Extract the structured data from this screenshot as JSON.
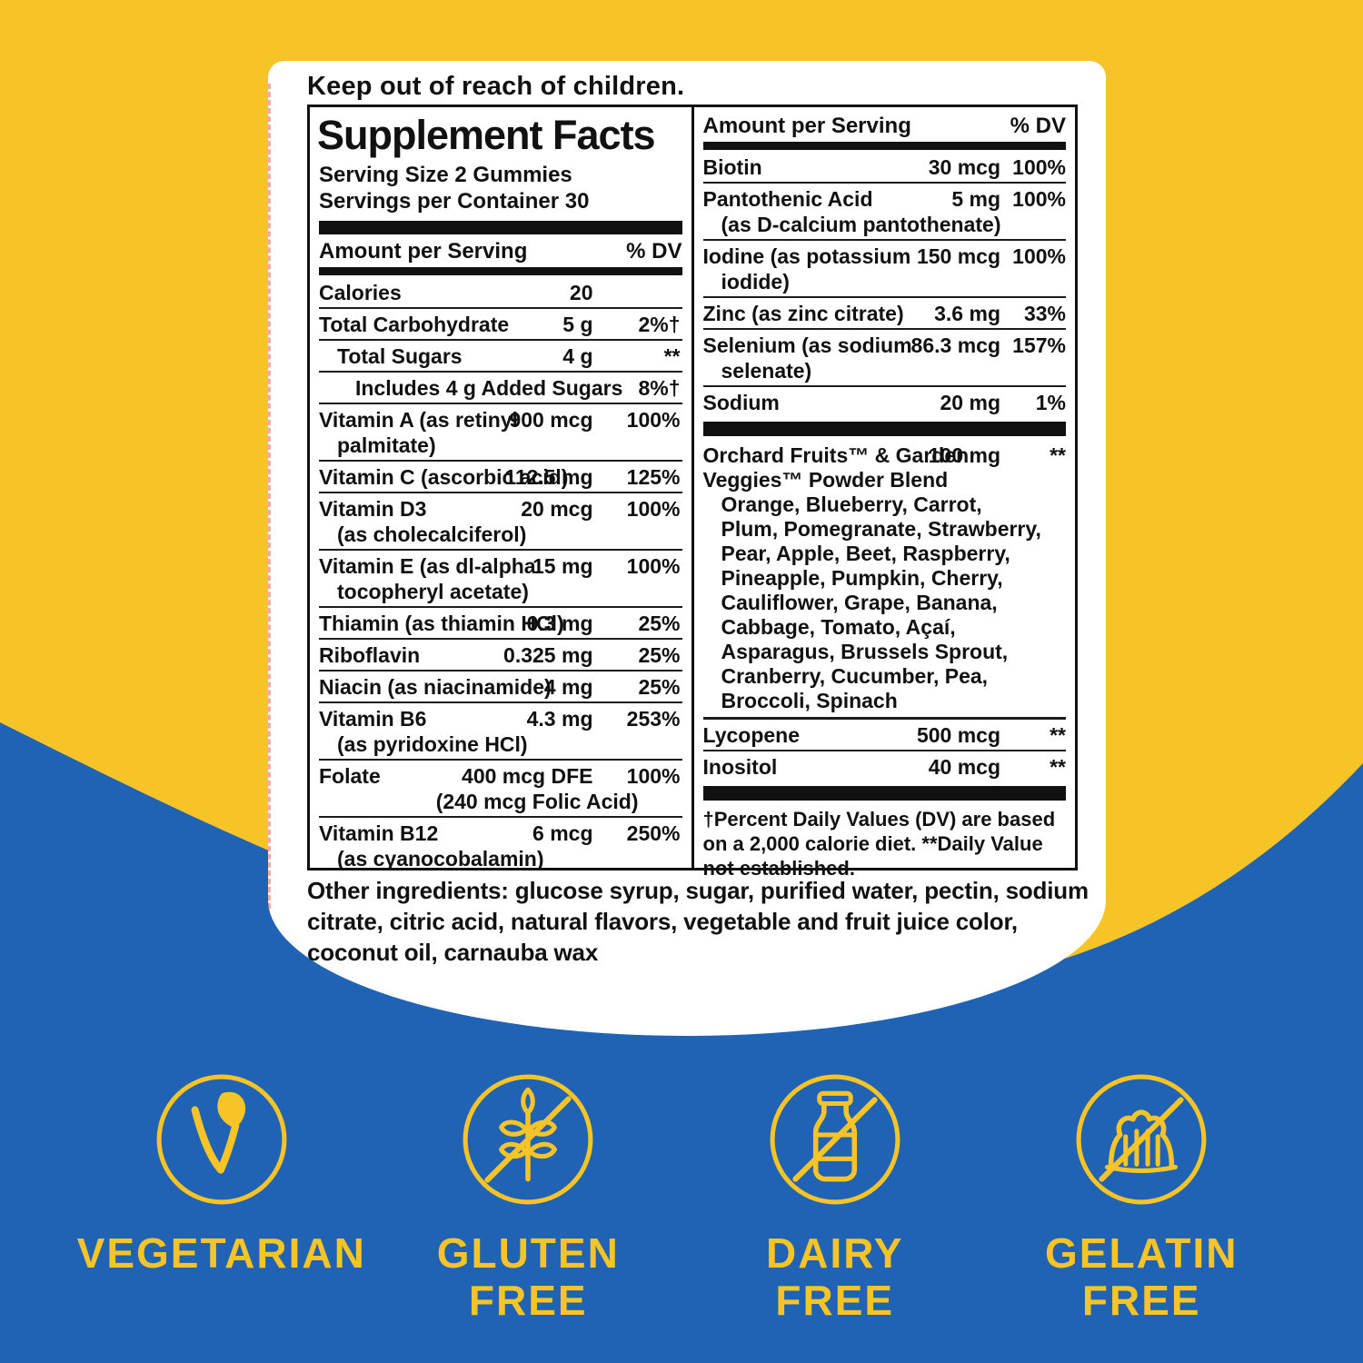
{
  "colors": {
    "yellow": "#F7C428",
    "blue": "#2062B4",
    "panel": "#FFFFFF",
    "ink": "#111111",
    "accent": "#F6C426"
  },
  "warning_text": "Keep out of reach of children.",
  "panel": {
    "title": "Supplement Facts",
    "serving_size": "Serving Size 2 Gummies",
    "servings_per_container": "Servings per Container 30",
    "header_amount": "Amount per Serving",
    "header_dv": "% DV",
    "left_rows": [
      {
        "lines": [
          "Calories"
        ],
        "amount": "20",
        "dv": ""
      },
      {
        "lines": [
          "Total Carbohydrate"
        ],
        "amount": "5 g",
        "dv": "2%†"
      },
      {
        "lines": [
          "Total Sugars"
        ],
        "amount": "4 g",
        "dv": "**",
        "indent": 1
      },
      {
        "lines": [
          "Includes 4 g Added Sugars"
        ],
        "amount": "",
        "dv": "8%†",
        "indent": 2
      },
      {
        "lines": [
          "Vitamin A (as retinyl",
          "palmitate)"
        ],
        "amount": "900 mcg",
        "dv": "100%"
      },
      {
        "lines": [
          "Vitamin C (ascorbic acid)"
        ],
        "amount": "112.5 mg",
        "dv": "125%"
      },
      {
        "lines": [
          "Vitamin D3",
          "(as cholecalciferol)"
        ],
        "amount": "20 mcg",
        "dv": "100%"
      },
      {
        "lines": [
          "Vitamin E (as dl-alpha",
          "tocopheryl acetate)"
        ],
        "amount": "15 mg",
        "dv": "100%"
      },
      {
        "lines": [
          "Thiamin (as thiamin HCl)"
        ],
        "amount": "0.3 mg",
        "dv": "25%"
      },
      {
        "lines": [
          "Riboflavin"
        ],
        "amount": "0.325 mg",
        "dv": "25%"
      },
      {
        "lines": [
          "Niacin (as niacinamide)"
        ],
        "amount": "4 mg",
        "dv": "25%"
      },
      {
        "lines": [
          "Vitamin B6",
          "(as pyridoxine HCl)"
        ],
        "amount": "4.3 mg",
        "dv": "253%"
      },
      {
        "lines": [
          "Folate"
        ],
        "amount": "400 mcg DFE",
        "dv": "100%",
        "sub": "(240 mcg Folic Acid)"
      },
      {
        "lines": [
          "Vitamin B12",
          "(as cyanocobalamin)"
        ],
        "amount": "6 mcg",
        "dv": "250%"
      }
    ],
    "right_rows": [
      {
        "lines": [
          "Biotin"
        ],
        "amount": "30 mcg",
        "dv": "100%"
      },
      {
        "lines": [
          "Pantothenic Acid",
          "(as D-calcium pantothenate)"
        ],
        "amount": "5 mg",
        "dv": "100%"
      },
      {
        "lines": [
          "Iodine (as potassium",
          "iodide)"
        ],
        "amount": "150 mcg",
        "dv": "100%"
      },
      {
        "lines": [
          "Zinc (as zinc citrate)"
        ],
        "amount": "3.6 mg",
        "dv": "33%"
      },
      {
        "lines": [
          "Selenium (as sodium",
          "selenate)"
        ],
        "amount": "86.3 mcg",
        "dv": "157%"
      },
      {
        "lines": [
          "Sodium"
        ],
        "amount": "20 mg",
        "dv": "1%"
      }
    ],
    "blend": {
      "lines": [
        "Orchard Fruits™ & Garden",
        "Veggies™ Powder Blend"
      ],
      "amount": "100 mg",
      "dv": "**",
      "ingredients": [
        "Orange, Blueberry, Carrot,",
        "Plum, Pomegranate, Strawberry,",
        "Pear, Apple, Beet, Raspberry,",
        "Pineapple, Pumpkin, Cherry,",
        "Cauliflower, Grape, Banana,",
        "Cabbage, Tomato, Açaí,",
        "Asparagus, Brussels Sprout,",
        "Cranberry, Cucumber, Pea,",
        "Broccoli, Spinach"
      ]
    },
    "right_rows2": [
      {
        "lines": [
          "Lycopene"
        ],
        "amount": "500 mcg",
        "dv": "**"
      },
      {
        "lines": [
          "Inositol"
        ],
        "amount": "40 mcg",
        "dv": "**"
      }
    ],
    "footnote": "†Percent Daily Values (DV) are based on a 2,000 calorie diet. **Daily Value not established.",
    "other_ingredients": "Other ingredients: glucose syrup, sugar, purified water, pectin, sodium citrate, citric acid, natural flavors, vegetable and fruit juice color, coconut oil, carnauba wax"
  },
  "badges": [
    {
      "icon": "vegetarian-leaf",
      "label": "VEGETARIAN",
      "label2": ""
    },
    {
      "icon": "gluten-wheat-slash",
      "label": "GLUTEN",
      "label2": "FREE"
    },
    {
      "icon": "dairy-bottle-slash",
      "label": "DAIRY",
      "label2": "FREE"
    },
    {
      "icon": "gelatin-mold-slash",
      "label": "GELATIN",
      "label2": "FREE"
    }
  ]
}
